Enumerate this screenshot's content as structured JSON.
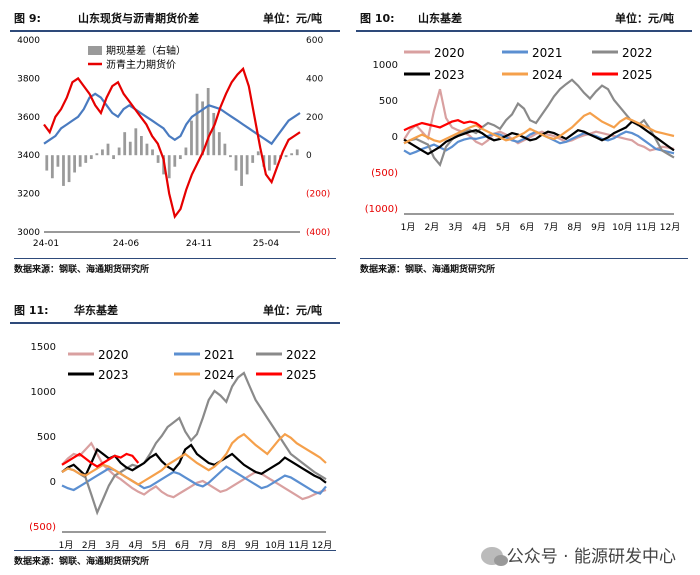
{
  "colors": {
    "header_rule": "#2e4a7a",
    "2020": "#d9a0a0",
    "2021": "#5b8fd1",
    "2022": "#8a8a8a",
    "2023": "#000000",
    "2024": "#f5a04b",
    "2025": "#ff0000",
    "spread": "#e60000",
    "basis_bar": "#9a9a9a",
    "futures_line": "#4a7bc0"
  },
  "watermark": {
    "icon": "wechat-icon",
    "text": "公众号 · 能源研发中心"
  },
  "panels": [
    {
      "fig": "图 9:",
      "title": "山东现货与沥青期货价差",
      "unit": "单位：元/吨",
      "source": "数据来源：钢联、海通期货研究所"
    },
    {
      "fig": "图 10:",
      "title": "山东基差",
      "unit": "单位：元/吨",
      "source": "数据来源：钢联、海通期货研究所"
    },
    {
      "fig": "图 11:",
      "title": "华东基差",
      "unit": "单位：元/吨",
      "source": "数据来源：钢联、海通期货研究所"
    }
  ],
  "chart_data": [
    {
      "type": "line",
      "x_ticks": [
        "24-01",
        "24-06",
        "24-11",
        "25-04"
      ],
      "y_left": {
        "ticks": [
          "4000",
          "3800",
          "3600",
          "3400",
          "3200",
          "3000"
        ],
        "range": [
          3000,
          4000
        ]
      },
      "y_right": {
        "ticks": [
          "600",
          "400",
          "200",
          "0",
          "(200)",
          "(400)"
        ],
        "range": [
          -400,
          600
        ]
      },
      "legend": [
        "期现基差（右轴）",
        "沥青主力期货价"
      ],
      "series": [
        {
          "name": "期现基差（右轴）",
          "kind": "bar",
          "axis": "right",
          "values": [
            -80,
            -120,
            -60,
            -160,
            -140,
            -90,
            -60,
            -40,
            -20,
            10,
            30,
            60,
            -20,
            40,
            120,
            70,
            140,
            100,
            60,
            30,
            -40,
            -100,
            -120,
            -60,
            -20,
            40,
            180,
            320,
            280,
            350,
            220,
            120,
            60,
            -10,
            -80,
            -160,
            -100,
            -40,
            20,
            -60,
            -80,
            -50,
            -20,
            -10,
            10,
            30
          ]
        },
        {
          "name": "沥青主力期货价",
          "kind": "line",
          "axis": "left",
          "color": "spread",
          "values": [
            3560,
            3520,
            3600,
            3640,
            3700,
            3780,
            3800,
            3760,
            3720,
            3660,
            3620,
            3700,
            3760,
            3780,
            3720,
            3680,
            3640,
            3600,
            3560,
            3500,
            3460,
            3380,
            3200,
            3080,
            3120,
            3220,
            3300,
            3360,
            3420,
            3500,
            3560,
            3650,
            3720,
            3780,
            3820,
            3850,
            3760,
            3600,
            3440,
            3300,
            3260,
            3340,
            3420,
            3480,
            3500,
            3520
          ]
        },
        {
          "name": "",
          "kind": "line",
          "axis": "left",
          "color": "futures_line",
          "values": [
            3460,
            3480,
            3500,
            3540,
            3560,
            3580,
            3600,
            3640,
            3700,
            3720,
            3700,
            3660,
            3620,
            3600,
            3640,
            3660,
            3640,
            3620,
            3600,
            3580,
            3560,
            3540,
            3500,
            3480,
            3500,
            3560,
            3600,
            3620,
            3640,
            3660,
            3650,
            3640,
            3620,
            3600,
            3580,
            3560,
            3540,
            3520,
            3500,
            3480,
            3460,
            3500,
            3540,
            3580,
            3600,
            3620
          ]
        }
      ]
    },
    {
      "type": "line",
      "x_ticks": [
        "1月",
        "2月",
        "3月",
        "4月",
        "5月",
        "6月",
        "7月",
        "8月",
        "9月",
        "10月",
        "11月",
        "12月"
      ],
      "y_ticks": [
        "1000",
        "500",
        "0",
        "(500)",
        "(1000)"
      ],
      "ylim": [
        -1000,
        1000
      ],
      "series": [
        {
          "name": "2020",
          "values": [
            -50,
            80,
            150,
            60,
            -30,
            350,
            650,
            250,
            120,
            80,
            50,
            0,
            -80,
            -120,
            -60,
            30,
            60,
            20,
            -40,
            -100,
            -60,
            -20,
            30,
            60,
            20,
            0,
            -40,
            -80,
            -60,
            -20,
            10,
            30,
            60,
            40,
            20,
            0,
            -20,
            -40,
            -60,
            -120,
            -150,
            -200,
            -180,
            -150,
            -160,
            -180
          ]
        },
        {
          "name": "2021",
          "values": [
            -200,
            -250,
            -220,
            -180,
            -150,
            -120,
            -160,
            -200,
            -150,
            -80,
            -50,
            -30,
            -40,
            -20,
            0,
            30,
            20,
            -20,
            -60,
            -80,
            -40,
            20,
            60,
            20,
            -20,
            -60,
            -100,
            -80,
            -40,
            0,
            40,
            20,
            0,
            -40,
            -60,
            -30,
            20,
            60,
            40,
            0,
            -60,
            -120,
            -180,
            -200,
            -220,
            -240
          ]
        },
        {
          "name": "2022",
          "values": [
            -100,
            -60,
            -40,
            -80,
            -120,
            -300,
            -400,
            -150,
            -50,
            30,
            60,
            80,
            40,
            120,
            180,
            150,
            100,
            220,
            300,
            450,
            380,
            220,
            180,
            300,
            420,
            550,
            650,
            720,
            780,
            700,
            600,
            520,
            620,
            700,
            650,
            500,
            400,
            300,
            200,
            150,
            220,
            100,
            -50,
            -200,
            -250,
            -300
          ]
        },
        {
          "name": "2023",
          "values": [
            -50,
            -100,
            -150,
            -200,
            -250,
            -200,
            -150,
            -80,
            -40,
            0,
            30,
            60,
            80,
            40,
            -20,
            -60,
            -40,
            0,
            40,
            20,
            -20,
            -60,
            -40,
            20,
            60,
            40,
            0,
            -40,
            20,
            80,
            60,
            20,
            -20,
            -60,
            -20,
            40,
            80,
            120,
            200,
            160,
            100,
            40,
            -20,
            -80,
            -140,
            -200
          ]
        },
        {
          "name": "2024",
          "values": [
            -100,
            -60,
            -20,
            20,
            -20,
            -60,
            -80,
            -40,
            0,
            40,
            80,
            120,
            150,
            100,
            60,
            20,
            -20,
            -60,
            -40,
            0,
            40,
            100,
            60,
            20,
            -20,
            -40,
            0,
            60,
            120,
            200,
            280,
            320,
            260,
            200,
            160,
            120,
            200,
            250,
            220,
            180,
            140,
            100,
            60,
            40,
            20,
            0
          ]
        },
        {
          "name": "2025",
          "values": [
            80,
            120,
            150,
            180,
            160,
            140,
            120,
            160,
            200,
            220,
            180,
            200,
            180,
            120
          ]
        }
      ]
    },
    {
      "type": "line",
      "x_ticks": [
        "1月",
        "2月",
        "3月",
        "4月",
        "5月",
        "6月",
        "7月",
        "8月",
        "9月",
        "10月",
        "11月",
        "12月"
      ],
      "y_ticks": [
        "1500",
        "1000",
        "500",
        "0",
        "(500)"
      ],
      "ylim": [
        -500,
        1500
      ],
      "series": [
        {
          "name": "2020",
          "values": [
            180,
            250,
            300,
            280,
            350,
            420,
            300,
            180,
            120,
            60,
            20,
            -30,
            -80,
            -120,
            -150,
            -100,
            -60,
            -120,
            -160,
            -180,
            -140,
            -100,
            -60,
            -20,
            0,
            -40,
            -80,
            -120,
            -100,
            -60,
            -20,
            20,
            60,
            100,
            80,
            40,
            0,
            -40,
            -80,
            -120,
            -160,
            -200,
            -180,
            -150,
            -120,
            -100
          ]
        },
        {
          "name": "2021",
          "values": [
            -50,
            -80,
            -100,
            -60,
            -20,
            20,
            60,
            100,
            140,
            120,
            80,
            40,
            0,
            -40,
            -80,
            -60,
            -20,
            20,
            60,
            100,
            80,
            40,
            0,
            -40,
            -60,
            -20,
            40,
            100,
            160,
            120,
            80,
            40,
            0,
            -40,
            -80,
            -60,
            -20,
            20,
            60,
            40,
            0,
            -40,
            -80,
            -120,
            -140,
            -60
          ]
        },
        {
          "name": "2022",
          "values": [
            100,
            140,
            120,
            80,
            40,
            -150,
            -350,
            -200,
            -50,
            60,
            100,
            140,
            180,
            160,
            200,
            300,
            420,
            500,
            600,
            650,
            700,
            550,
            450,
            520,
            700,
            900,
            1000,
            950,
            880,
            1050,
            1150,
            1200,
            1050,
            900,
            800,
            700,
            600,
            500,
            400,
            300,
            250,
            200,
            150,
            100,
            60,
            20
          ]
        },
        {
          "name": "2023",
          "values": [
            100,
            150,
            180,
            120,
            60,
            200,
            350,
            300,
            250,
            280,
            200,
            150,
            120,
            160,
            200,
            260,
            300,
            220,
            160,
            120,
            200,
            350,
            400,
            300,
            250,
            200,
            180,
            220,
            260,
            300,
            240,
            180,
            140,
            100,
            80,
            120,
            160,
            200,
            260,
            220,
            180,
            140,
            100,
            60,
            30,
            -20
          ]
        },
        {
          "name": "2024",
          "values": [
            100,
            140,
            120,
            80,
            60,
            100,
            140,
            180,
            160,
            120,
            80,
            40,
            0,
            -40,
            0,
            40,
            80,
            120,
            180,
            220,
            260,
            300,
            250,
            200,
            160,
            120,
            160,
            220,
            300,
            420,
            480,
            520,
            460,
            400,
            350,
            300,
            380,
            460,
            520,
            480,
            420,
            380,
            340,
            300,
            260,
            200
          ]
        },
        {
          "name": "2025",
          "values": [
            180,
            220,
            260,
            300,
            250,
            200,
            160,
            200,
            240,
            280,
            260,
            300,
            280,
            200
          ]
        }
      ]
    }
  ]
}
